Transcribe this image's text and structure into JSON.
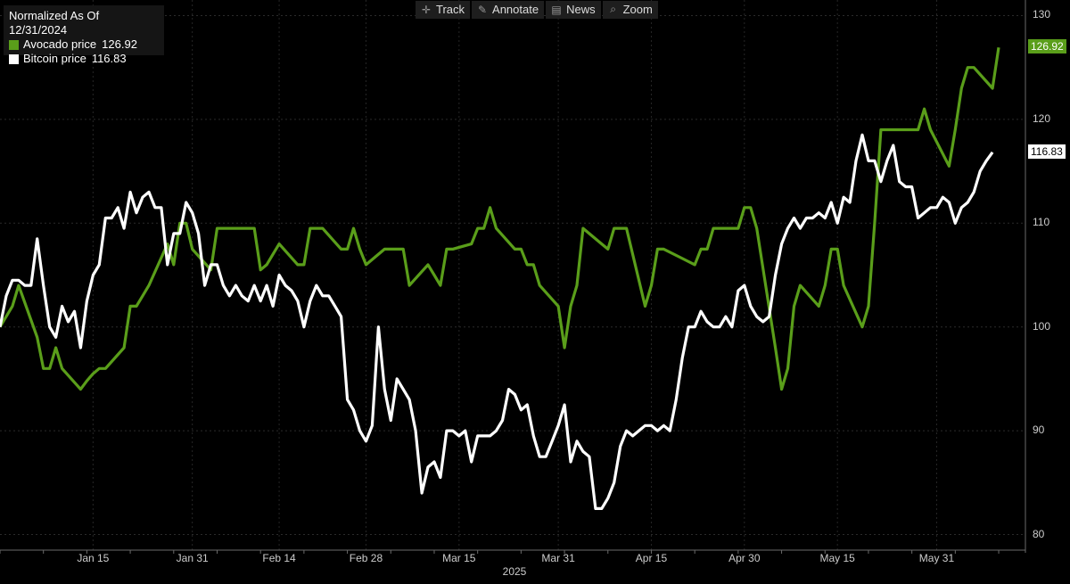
{
  "legend": {
    "title": "Normalized As Of 12/31/2024",
    "items": [
      {
        "label": "Avocado price",
        "value": "126.92",
        "color": "#5a9e1a"
      },
      {
        "label": "Bitcoin price",
        "value": "116.83",
        "color": "#ffffff"
      }
    ]
  },
  "toolbar": [
    {
      "label": "Track",
      "icon": "crosshair-icon",
      "glyph": "✛"
    },
    {
      "label": "Annotate",
      "icon": "pencil-icon",
      "glyph": "✎"
    },
    {
      "label": "News",
      "icon": "news-icon",
      "glyph": "▤"
    },
    {
      "label": "Zoom",
      "icon": "magnifier-icon",
      "glyph": "⌕"
    }
  ],
  "chart_data": {
    "type": "line",
    "title": "",
    "xlabel": "2025",
    "ylabel": "",
    "x_ticks": [
      "Jan 15",
      "Jan 31",
      "Feb 14",
      "Feb 28",
      "Mar 15",
      "Mar 31",
      "Apr 15",
      "Apr 30",
      "May 15",
      "May 31"
    ],
    "y_ticks": [
      80,
      90,
      100,
      110,
      120,
      130
    ],
    "ylim": [
      78.5,
      131.5
    ],
    "x_range": [
      "2024-12-31",
      "2025-06-11"
    ],
    "grid": true,
    "last_values": {
      "Avocado price": "126.92",
      "Bitcoin price": "116.83"
    },
    "series": [
      {
        "name": "Avocado price",
        "color": "#5a9e1a",
        "points": [
          [
            "2024-12-31",
            100
          ],
          [
            "2025-01-02",
            102
          ],
          [
            "2025-01-03",
            104
          ],
          [
            "2025-01-06",
            99
          ],
          [
            "2025-01-07",
            96
          ],
          [
            "2025-01-08",
            96
          ],
          [
            "2025-01-09",
            98
          ],
          [
            "2025-01-10",
            96
          ],
          [
            "2025-01-13",
            94
          ],
          [
            "2025-01-14",
            94.8
          ],
          [
            "2025-01-15",
            95.5
          ],
          [
            "2025-01-16",
            96
          ],
          [
            "2025-01-17",
            96
          ],
          [
            "2025-01-20",
            98
          ],
          [
            "2025-01-21",
            102
          ],
          [
            "2025-01-22",
            102
          ],
          [
            "2025-01-23",
            103
          ],
          [
            "2025-01-24",
            104
          ],
          [
            "2025-01-27",
            108
          ],
          [
            "2025-01-28",
            106
          ],
          [
            "2025-01-29",
            110
          ],
          [
            "2025-01-30",
            110
          ],
          [
            "2025-01-31",
            107.5
          ],
          [
            "2025-02-03",
            105.5
          ],
          [
            "2025-02-04",
            109.5
          ],
          [
            "2025-02-05",
            109.5
          ],
          [
            "2025-02-06",
            109.5
          ],
          [
            "2025-02-07",
            109.5
          ],
          [
            "2025-02-10",
            109.5
          ],
          [
            "2025-02-11",
            105.5
          ],
          [
            "2025-02-12",
            106
          ],
          [
            "2025-02-13",
            107
          ],
          [
            "2025-02-14",
            108
          ],
          [
            "2025-02-17",
            106
          ],
          [
            "2025-02-18",
            106
          ],
          [
            "2025-02-19",
            109.5
          ],
          [
            "2025-02-20",
            109.5
          ],
          [
            "2025-02-21",
            109.5
          ],
          [
            "2025-02-24",
            107.5
          ],
          [
            "2025-02-25",
            107.5
          ],
          [
            "2025-02-26",
            109.5
          ],
          [
            "2025-02-27",
            107.5
          ],
          [
            "2025-02-28",
            106
          ],
          [
            "2025-03-03",
            107.5
          ],
          [
            "2025-03-04",
            107.5
          ],
          [
            "2025-03-05",
            107.5
          ],
          [
            "2025-03-06",
            107.5
          ],
          [
            "2025-03-07",
            104
          ],
          [
            "2025-03-10",
            106
          ],
          [
            "2025-03-11",
            105
          ],
          [
            "2025-03-12",
            104
          ],
          [
            "2025-03-13",
            107.5
          ],
          [
            "2025-03-14",
            107.5
          ],
          [
            "2025-03-17",
            108
          ],
          [
            "2025-03-18",
            109.5
          ],
          [
            "2025-03-19",
            109.5
          ],
          [
            "2025-03-20",
            111.5
          ],
          [
            "2025-03-21",
            109.5
          ],
          [
            "2025-03-24",
            107.5
          ],
          [
            "2025-03-25",
            107.5
          ],
          [
            "2025-03-26",
            106
          ],
          [
            "2025-03-27",
            106
          ],
          [
            "2025-03-28",
            104
          ],
          [
            "2025-03-31",
            102
          ],
          [
            "2025-04-01",
            98
          ],
          [
            "2025-04-02",
            102
          ],
          [
            "2025-04-03",
            104
          ],
          [
            "2025-04-04",
            109.5
          ],
          [
            "2025-04-07",
            108
          ],
          [
            "2025-04-08",
            107.5
          ],
          [
            "2025-04-09",
            109.5
          ],
          [
            "2025-04-10",
            109.5
          ],
          [
            "2025-04-11",
            109.5
          ],
          [
            "2025-04-14",
            102
          ],
          [
            "2025-04-15",
            104
          ],
          [
            "2025-04-16",
            107.5
          ],
          [
            "2025-04-17",
            107.5
          ],
          [
            "2025-04-22",
            106
          ],
          [
            "2025-04-23",
            107.5
          ],
          [
            "2025-04-24",
            107.5
          ],
          [
            "2025-04-25",
            109.5
          ],
          [
            "2025-04-28",
            109.5
          ],
          [
            "2025-04-29",
            109.5
          ],
          [
            "2025-04-30",
            111.5
          ],
          [
            "2025-05-01",
            111.5
          ],
          [
            "2025-05-02",
            109.5
          ],
          [
            "2025-05-05",
            98
          ],
          [
            "2025-05-06",
            94
          ],
          [
            "2025-05-07",
            96
          ],
          [
            "2025-05-08",
            102
          ],
          [
            "2025-05-09",
            104
          ],
          [
            "2025-05-12",
            102
          ],
          [
            "2025-05-13",
            104
          ],
          [
            "2025-05-14",
            107.5
          ],
          [
            "2025-05-15",
            107.5
          ],
          [
            "2025-05-16",
            104
          ],
          [
            "2025-05-19",
            100
          ],
          [
            "2025-05-20",
            102
          ],
          [
            "2025-05-21",
            110
          ],
          [
            "2025-05-22",
            119
          ],
          [
            "2025-05-23",
            119
          ],
          [
            "2025-05-26",
            119
          ],
          [
            "2025-05-27",
            119
          ],
          [
            "2025-05-28",
            119
          ],
          [
            "2025-05-29",
            121
          ],
          [
            "2025-05-30",
            119
          ],
          [
            "2025-06-02",
            115.5
          ],
          [
            "2025-06-03",
            119
          ],
          [
            "2025-06-04",
            123
          ],
          [
            "2025-06-05",
            125
          ],
          [
            "2025-06-06",
            125
          ],
          [
            "2025-06-09",
            123
          ],
          [
            "2025-06-10",
            126.92
          ]
        ]
      },
      {
        "name": "Bitcoin price",
        "color": "#ffffff",
        "points": [
          [
            "2024-12-31",
            100
          ],
          [
            "2025-01-01",
            103
          ],
          [
            "2025-01-02",
            104.5
          ],
          [
            "2025-01-03",
            104.5
          ],
          [
            "2025-01-04",
            104
          ],
          [
            "2025-01-05",
            104
          ],
          [
            "2025-01-06",
            108.5
          ],
          [
            "2025-01-07",
            104
          ],
          [
            "2025-01-08",
            100
          ],
          [
            "2025-01-09",
            99
          ],
          [
            "2025-01-10",
            102
          ],
          [
            "2025-01-11",
            100.5
          ],
          [
            "2025-01-12",
            101.5
          ],
          [
            "2025-01-13",
            98
          ],
          [
            "2025-01-14",
            102.5
          ],
          [
            "2025-01-15",
            105
          ],
          [
            "2025-01-16",
            106
          ],
          [
            "2025-01-17",
            110.5
          ],
          [
            "2025-01-18",
            110.5
          ],
          [
            "2025-01-19",
            111.5
          ],
          [
            "2025-01-20",
            109.5
          ],
          [
            "2025-01-21",
            113
          ],
          [
            "2025-01-22",
            111
          ],
          [
            "2025-01-23",
            112.5
          ],
          [
            "2025-01-24",
            113
          ],
          [
            "2025-01-25",
            111.5
          ],
          [
            "2025-01-26",
            111.5
          ],
          [
            "2025-01-27",
            106
          ],
          [
            "2025-01-28",
            109
          ],
          [
            "2025-01-29",
            109
          ],
          [
            "2025-01-30",
            112
          ],
          [
            "2025-01-31",
            111
          ],
          [
            "2025-02-01",
            109
          ],
          [
            "2025-02-02",
            104
          ],
          [
            "2025-02-03",
            106
          ],
          [
            "2025-02-04",
            106
          ],
          [
            "2025-02-05",
            104
          ],
          [
            "2025-02-06",
            103
          ],
          [
            "2025-02-07",
            104
          ],
          [
            "2025-02-08",
            103
          ],
          [
            "2025-02-09",
            102.5
          ],
          [
            "2025-02-10",
            104
          ],
          [
            "2025-02-11",
            102.5
          ],
          [
            "2025-02-12",
            104
          ],
          [
            "2025-02-13",
            102
          ],
          [
            "2025-02-14",
            105
          ],
          [
            "2025-02-15",
            104
          ],
          [
            "2025-02-16",
            103.5
          ],
          [
            "2025-02-17",
            102.5
          ],
          [
            "2025-02-18",
            100
          ],
          [
            "2025-02-19",
            102.5
          ],
          [
            "2025-02-20",
            104
          ],
          [
            "2025-02-21",
            103
          ],
          [
            "2025-02-22",
            103
          ],
          [
            "2025-02-23",
            102
          ],
          [
            "2025-02-24",
            101
          ],
          [
            "2025-02-25",
            93
          ],
          [
            "2025-02-26",
            92
          ],
          [
            "2025-02-27",
            90
          ],
          [
            "2025-02-28",
            89
          ],
          [
            "2025-03-01",
            90.5
          ],
          [
            "2025-03-02",
            100
          ],
          [
            "2025-03-03",
            94
          ],
          [
            "2025-03-04",
            91
          ],
          [
            "2025-03-05",
            95
          ],
          [
            "2025-03-06",
            94
          ],
          [
            "2025-03-07",
            93
          ],
          [
            "2025-03-08",
            90
          ],
          [
            "2025-03-09",
            84
          ],
          [
            "2025-03-10",
            86.5
          ],
          [
            "2025-03-11",
            87
          ],
          [
            "2025-03-12",
            85.5
          ],
          [
            "2025-03-13",
            90
          ],
          [
            "2025-03-14",
            90
          ],
          [
            "2025-03-15",
            89.5
          ],
          [
            "2025-03-16",
            90
          ],
          [
            "2025-03-17",
            87
          ],
          [
            "2025-03-18",
            89.5
          ],
          [
            "2025-03-19",
            89.5
          ],
          [
            "2025-03-20",
            89.5
          ],
          [
            "2025-03-21",
            90
          ],
          [
            "2025-03-22",
            91
          ],
          [
            "2025-03-23",
            94
          ],
          [
            "2025-03-24",
            93.5
          ],
          [
            "2025-03-25",
            92
          ],
          [
            "2025-03-26",
            92.5
          ],
          [
            "2025-03-27",
            89.5
          ],
          [
            "2025-03-28",
            87.5
          ],
          [
            "2025-03-29",
            87.5
          ],
          [
            "2025-03-30",
            89
          ],
          [
            "2025-03-31",
            90.5
          ],
          [
            "2025-04-01",
            92.5
          ],
          [
            "2025-04-02",
            87
          ],
          [
            "2025-04-03",
            89
          ],
          [
            "2025-04-04",
            88
          ],
          [
            "2025-04-05",
            87.5
          ],
          [
            "2025-04-06",
            82.5
          ],
          [
            "2025-04-07",
            82.5
          ],
          [
            "2025-04-08",
            83.5
          ],
          [
            "2025-04-09",
            85
          ],
          [
            "2025-04-10",
            88.5
          ],
          [
            "2025-04-11",
            90
          ],
          [
            "2025-04-12",
            89.5
          ],
          [
            "2025-04-13",
            90
          ],
          [
            "2025-04-14",
            90.5
          ],
          [
            "2025-04-15",
            90.5
          ],
          [
            "2025-04-16",
            90
          ],
          [
            "2025-04-17",
            90.5
          ],
          [
            "2025-04-18",
            90
          ],
          [
            "2025-04-19",
            93
          ],
          [
            "2025-04-20",
            97
          ],
          [
            "2025-04-21",
            100
          ],
          [
            "2025-04-22",
            100
          ],
          [
            "2025-04-23",
            101.5
          ],
          [
            "2025-04-24",
            100.5
          ],
          [
            "2025-04-25",
            100
          ],
          [
            "2025-04-26",
            100
          ],
          [
            "2025-04-27",
            101
          ],
          [
            "2025-04-28",
            100
          ],
          [
            "2025-04-29",
            103.5
          ],
          [
            "2025-04-30",
            104
          ],
          [
            "2025-05-01",
            102
          ],
          [
            "2025-05-02",
            101
          ],
          [
            "2025-05-03",
            100.5
          ],
          [
            "2025-05-04",
            101
          ],
          [
            "2025-05-05",
            105
          ],
          [
            "2025-05-06",
            108
          ],
          [
            "2025-05-07",
            109.5
          ],
          [
            "2025-05-08",
            110.5
          ],
          [
            "2025-05-09",
            109.5
          ],
          [
            "2025-05-10",
            110.5
          ],
          [
            "2025-05-11",
            110.5
          ],
          [
            "2025-05-12",
            111
          ],
          [
            "2025-05-13",
            110.5
          ],
          [
            "2025-05-14",
            112
          ],
          [
            "2025-05-15",
            110
          ],
          [
            "2025-05-16",
            112.5
          ],
          [
            "2025-05-17",
            112
          ],
          [
            "2025-05-18",
            116
          ],
          [
            "2025-05-19",
            118.5
          ],
          [
            "2025-05-20",
            116
          ],
          [
            "2025-05-21",
            116
          ],
          [
            "2025-05-22",
            114
          ],
          [
            "2025-05-23",
            116
          ],
          [
            "2025-05-24",
            117.5
          ],
          [
            "2025-05-25",
            114
          ],
          [
            "2025-05-26",
            113.5
          ],
          [
            "2025-05-27",
            113.5
          ],
          [
            "2025-05-28",
            110.5
          ],
          [
            "2025-05-29",
            111
          ],
          [
            "2025-05-30",
            111.5
          ],
          [
            "2025-05-31",
            111.5
          ],
          [
            "2025-06-01",
            112.5
          ],
          [
            "2025-06-02",
            112
          ],
          [
            "2025-06-03",
            110
          ],
          [
            "2025-06-04",
            111.5
          ],
          [
            "2025-06-05",
            112
          ],
          [
            "2025-06-06",
            113
          ],
          [
            "2025-06-07",
            115
          ],
          [
            "2025-06-08",
            116
          ],
          [
            "2025-06-09",
            116.83
          ]
        ]
      }
    ]
  }
}
